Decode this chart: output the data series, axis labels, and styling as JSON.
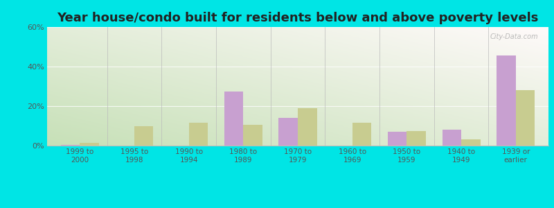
{
  "title": "Year house/condo built for residents below and above poverty levels",
  "categories": [
    "1999 to\n2000",
    "1995 to\n1998",
    "1990 to\n1994",
    "1980 to\n1989",
    "1970 to\n1979",
    "1960 to\n1969",
    "1950 to\n1959",
    "1940 to\n1949",
    "1939 or\nearlier"
  ],
  "below_poverty": [
    0.5,
    0.0,
    0.0,
    27.5,
    14.0,
    0.0,
    7.0,
    8.0,
    45.5
  ],
  "above_poverty": [
    1.5,
    10.0,
    11.5,
    10.5,
    19.0,
    11.5,
    7.5,
    3.0,
    28.0
  ],
  "below_color": "#c8a0d0",
  "above_color": "#c8cc90",
  "ylim": [
    0,
    60
  ],
  "yticks": [
    0,
    20,
    40,
    60
  ],
  "ytick_labels": [
    "0%",
    "20%",
    "40%",
    "60%"
  ],
  "outer_background": "#00e5e5",
  "title_fontsize": 13,
  "bar_width": 0.35,
  "grad_bottom_left": "#c8ddb0",
  "grad_top_right": "#f0f8f0",
  "divider_color": "#bbbbbb",
  "grid_color": "#dddddd",
  "tick_label_color": "#555555"
}
